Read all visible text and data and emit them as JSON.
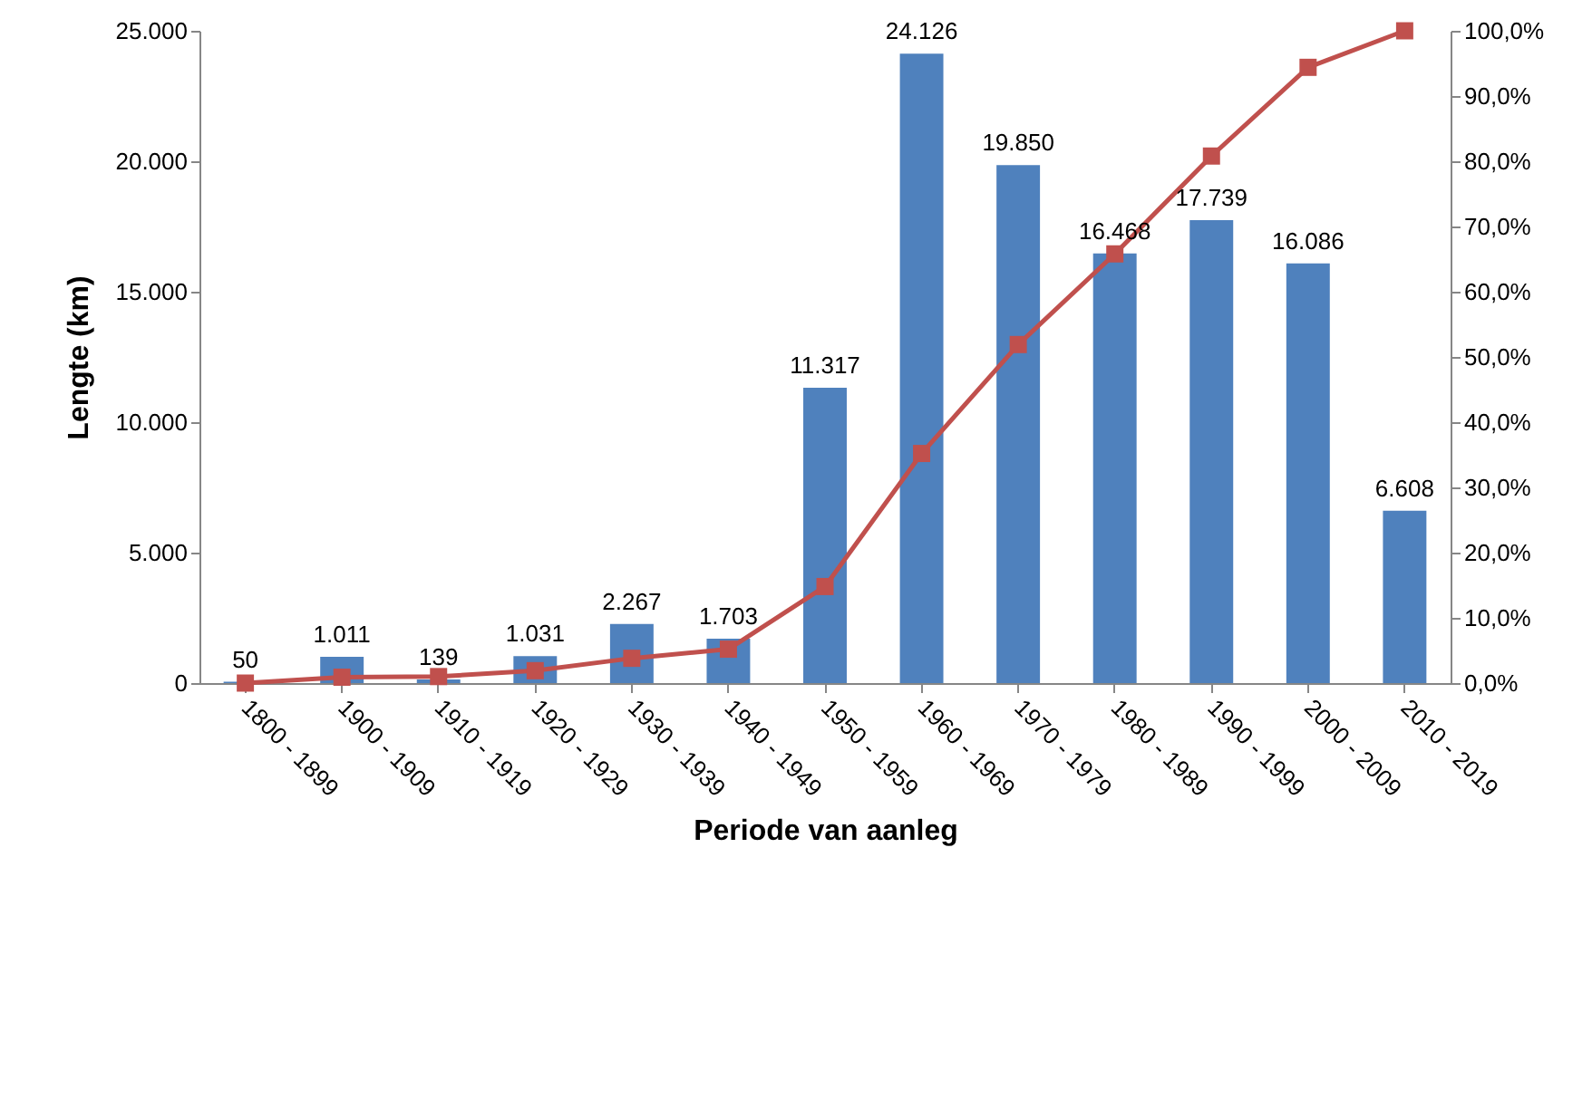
{
  "chart_data": {
    "type": "bar",
    "xlabel": "Periode van aanleg",
    "ylabel": "Lengte (km)",
    "categories": [
      "1800 - 1899",
      "1900 - 1909",
      "1910 - 1919",
      "1920 - 1929",
      "1930 - 1939",
      "1940 - 1949",
      "1950 - 1959",
      "1960 - 1969",
      "1970 - 1979",
      "1980 - 1989",
      "1990 - 1999",
      "2000 - 2009",
      "2010 - 2019"
    ],
    "series": [
      {
        "color": "#4f81bd",
        "values": [
          50,
          1011,
          139,
          1031,
          2267,
          1703,
          11317,
          24126,
          19850,
          16468,
          17739,
          16086,
          6608
        ],
        "value_labels": [
          "50",
          "1.011",
          "139",
          "1.031",
          "2.267",
          "1.703",
          "11.317",
          "24.126",
          "19.850",
          "16.468",
          "17.739",
          "16.086",
          "6.608"
        ]
      },
      {
        "type": "line",
        "axis": "y2",
        "color": "#c0504d",
        "marker": "square",
        "values": [
          0.0,
          0.9,
          1.0,
          1.9,
          3.8,
          5.2,
          14.8,
          35.2,
          51.9,
          65.8,
          80.8,
          94.4,
          100.0
        ]
      }
    ],
    "ylim": [
      0,
      25000
    ],
    "yticks": [
      {
        "value": 0,
        "label": "0"
      },
      {
        "value": 5000,
        "label": "5.000"
      },
      {
        "value": 10000,
        "label": "10.000"
      },
      {
        "value": 15000,
        "label": "15.000"
      },
      {
        "value": 20000,
        "label": "20.000"
      },
      {
        "value": 25000,
        "label": "25.000"
      }
    ],
    "y2lim": [
      0,
      100
    ],
    "y2ticks": [
      {
        "value": 0,
        "label": "0,0%"
      },
      {
        "value": 10,
        "label": "10,0%"
      },
      {
        "value": 20,
        "label": "20,0%"
      },
      {
        "value": 30,
        "label": "30,0%"
      },
      {
        "value": 40,
        "label": "40,0%"
      },
      {
        "value": 50,
        "label": "50,0%"
      },
      {
        "value": 60,
        "label": "60,0%"
      },
      {
        "value": 70,
        "label": "70,0%"
      },
      {
        "value": 80,
        "label": "80,0%"
      },
      {
        "value": 90,
        "label": "90,0%"
      },
      {
        "value": 100,
        "label": "100,0%"
      }
    ],
    "grid": false
  }
}
